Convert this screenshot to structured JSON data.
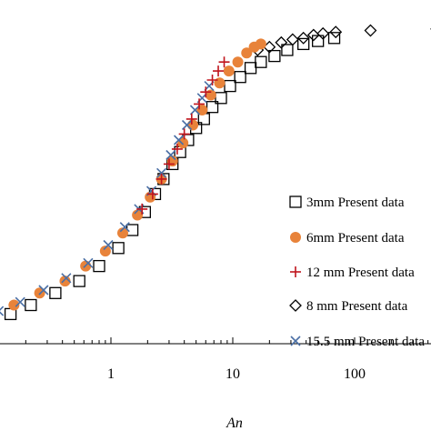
{
  "chart_data": {
    "type": "scatter",
    "xscale": "log",
    "xlabel": "An",
    "ylabel": "",
    "title": "",
    "grid": false,
    "legend_position": "right",
    "xlim": [
      0.09,
      600
    ],
    "ylim": [
      0,
      1.05
    ],
    "xticks": [
      {
        "value": 1,
        "label": "1"
      },
      {
        "value": 10,
        "label": "10"
      },
      {
        "value": 100,
        "label": "100"
      }
    ],
    "series": [
      {
        "name": "3mm Present data",
        "marker": "square-open",
        "color": "#000000",
        "points": [
          [
            0.15,
            0.02
          ],
          [
            0.22,
            0.05
          ],
          [
            0.35,
            0.09
          ],
          [
            0.55,
            0.13
          ],
          [
            0.8,
            0.18
          ],
          [
            1.15,
            0.24
          ],
          [
            1.5,
            0.3
          ],
          [
            1.9,
            0.36
          ],
          [
            2.3,
            0.42
          ],
          [
            2.7,
            0.47
          ],
          [
            3.2,
            0.52
          ],
          [
            3.7,
            0.56
          ],
          [
            4.3,
            0.6
          ],
          [
            5.0,
            0.64
          ],
          [
            5.8,
            0.67
          ],
          [
            6.8,
            0.71
          ],
          [
            8.0,
            0.74
          ],
          [
            9.5,
            0.78
          ],
          [
            11.5,
            0.81
          ],
          [
            14,
            0.84
          ],
          [
            17,
            0.86
          ],
          [
            22,
            0.88
          ],
          [
            28,
            0.9
          ],
          [
            38,
            0.92
          ],
          [
            50,
            0.93
          ],
          [
            68,
            0.94
          ]
        ]
      },
      {
        "name": "6mm Present data",
        "marker": "circle-filled",
        "color": "#e8833a",
        "points": [
          [
            0.1,
            0.03
          ],
          [
            0.16,
            0.05
          ],
          [
            0.26,
            0.09
          ],
          [
            0.42,
            0.13
          ],
          [
            0.62,
            0.18
          ],
          [
            0.9,
            0.23
          ],
          [
            1.25,
            0.29
          ],
          [
            1.65,
            0.35
          ],
          [
            2.1,
            0.41
          ],
          [
            2.6,
            0.47
          ],
          [
            3.2,
            0.53
          ],
          [
            3.9,
            0.59
          ],
          [
            4.7,
            0.65
          ],
          [
            5.6,
            0.7
          ],
          [
            6.6,
            0.75
          ],
          [
            7.8,
            0.79
          ],
          [
            9.3,
            0.83
          ],
          [
            11,
            0.86
          ],
          [
            13,
            0.89
          ],
          [
            15,
            0.91
          ],
          [
            17,
            0.92
          ]
        ]
      },
      {
        "name": "12 mm Present data",
        "marker": "plus",
        "color": "#c0141c",
        "points": [
          [
            1.8,
            0.37
          ],
          [
            2.2,
            0.42
          ],
          [
            2.6,
            0.47
          ],
          [
            3.0,
            0.52
          ],
          [
            3.5,
            0.57
          ],
          [
            4.0,
            0.62
          ],
          [
            4.6,
            0.67
          ],
          [
            5.3,
            0.72
          ],
          [
            6.0,
            0.76
          ],
          [
            6.8,
            0.8
          ],
          [
            7.6,
            0.83
          ],
          [
            8.5,
            0.86
          ]
        ]
      },
      {
        "name": "8 mm Present data",
        "marker": "diamond-open",
        "color": "#000000",
        "points": [
          [
            16,
            0.9
          ],
          [
            20,
            0.91
          ],
          [
            25,
            0.925
          ],
          [
            31,
            0.935
          ],
          [
            38,
            0.94
          ],
          [
            46,
            0.95
          ],
          [
            55,
            0.955
          ],
          [
            70,
            0.96
          ],
          [
            135,
            0.965
          ],
          [
            470,
            0.97
          ]
        ]
      },
      {
        "name": "15.5 mm Present data",
        "marker": "cross",
        "color": "#4a6fa5",
        "points": [
          [
            0.12,
            0.03
          ],
          [
            0.18,
            0.06
          ],
          [
            0.28,
            0.1
          ],
          [
            0.43,
            0.14
          ],
          [
            0.65,
            0.19
          ],
          [
            0.95,
            0.25
          ],
          [
            1.3,
            0.31
          ],
          [
            1.7,
            0.37
          ],
          [
            2.15,
            0.43
          ],
          [
            2.6,
            0.49
          ],
          [
            3.1,
            0.55
          ],
          [
            3.6,
            0.6
          ],
          [
            4.2,
            0.65
          ],
          [
            4.9,
            0.7
          ],
          [
            5.6,
            0.74
          ],
          [
            6.4,
            0.78
          ]
        ]
      }
    ],
    "legend_labels": {
      "s0": "3mm Present data",
      "s1": "6mm Present data",
      "s2": "12 mm Present data",
      "s3": "8 mm Present data",
      "s4": "15.5 mm Present data"
    }
  }
}
